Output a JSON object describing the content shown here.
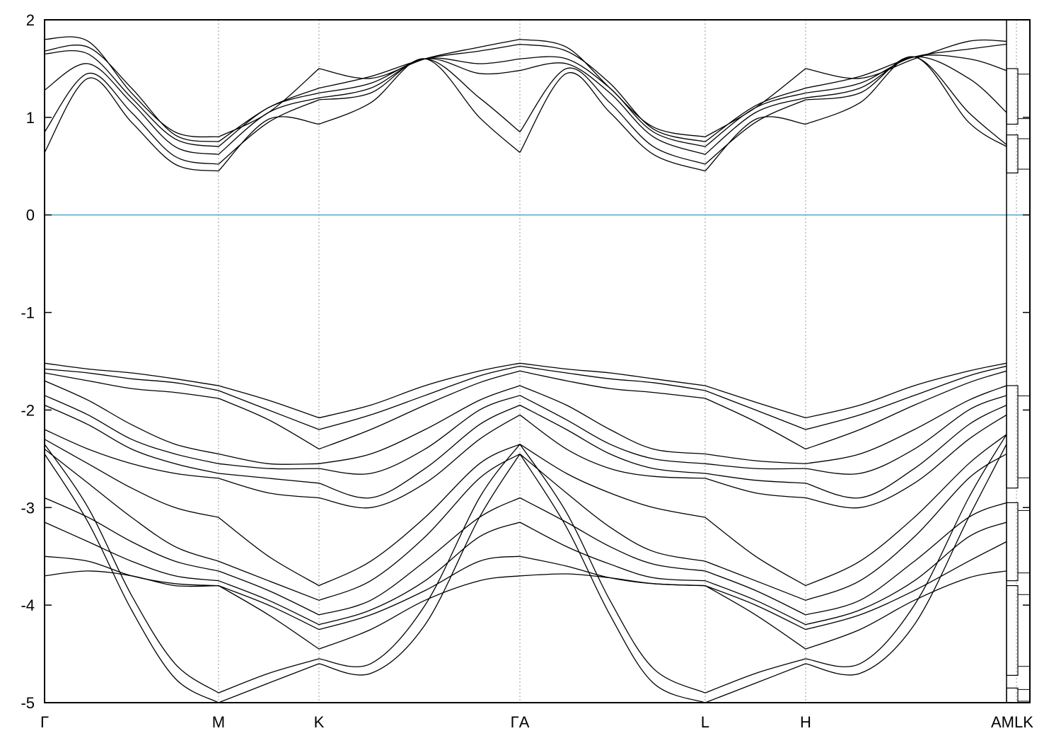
{
  "chart_data": {
    "type": "line",
    "title": "",
    "xlabel": "",
    "ylabel": "",
    "ylim": [
      -5,
      2
    ],
    "yticks": [
      -5,
      -4,
      -3,
      -2,
      -1,
      0,
      1,
      2
    ],
    "grid": "vertical dotted lines at high-symmetry points",
    "kpoints": [
      {
        "label": "Γ",
        "x": 0.0
      },
      {
        "label": "M",
        "x": 0.8
      },
      {
        "label": "K",
        "x": 1.262
      },
      {
        "label": "ΓA",
        "x": 2.186
      },
      {
        "label": "L",
        "x": 3.038
      },
      {
        "label": "H",
        "x": 3.5
      },
      {
        "label": "AMLK",
        "x": 4.424
      }
    ],
    "path_x_max": 4.424,
    "fermi_level": 0,
    "fermi_color": "#56a8c8",
    "line_color": "#000000",
    "dos_panel": {
      "energy_blocks": [
        [
          0.43,
          0.82
        ],
        [
          0.93,
          1.5
        ],
        [
          -1.75,
          -2.8
        ],
        [
          -2.95,
          -3.75
        ],
        [
          -3.8,
          -4.72
        ],
        [
          -4.85,
          -5.0
        ]
      ]
    },
    "segments": [
      {
        "from": "Γ",
        "to": "M",
        "x": [
          0.0,
          0.2,
          0.4,
          0.6,
          0.8
        ],
        "conduction": [
          [
            1.8,
            1.78,
            1.25,
            0.85,
            0.8
          ],
          [
            1.68,
            1.72,
            1.3,
            0.82,
            0.75
          ],
          [
            1.65,
            1.65,
            1.2,
            0.78,
            0.7
          ],
          [
            1.28,
            1.55,
            1.15,
            0.7,
            0.62
          ],
          [
            0.85,
            1.45,
            1.05,
            0.6,
            0.52
          ],
          [
            0.64,
            1.4,
            0.95,
            0.52,
            0.45
          ]
        ],
        "valence": [
          [
            -1.52,
            -1.58,
            -1.62,
            -1.68,
            -1.75
          ],
          [
            -1.58,
            -1.62,
            -1.68,
            -1.72,
            -1.8
          ],
          [
            -1.62,
            -1.7,
            -1.78,
            -1.82,
            -1.88
          ],
          [
            -1.7,
            -1.9,
            -2.15,
            -2.35,
            -2.45
          ],
          [
            -1.85,
            -2.05,
            -2.3,
            -2.45,
            -2.55
          ],
          [
            -1.95,
            -2.15,
            -2.4,
            -2.55,
            -2.65
          ],
          [
            -2.2,
            -2.4,
            -2.55,
            -2.65,
            -2.7
          ],
          [
            -2.3,
            -2.55,
            -2.8,
            -3.0,
            -3.1
          ],
          [
            -2.4,
            -2.75,
            -3.1,
            -3.4,
            -3.55
          ],
          [
            -2.9,
            -3.1,
            -3.35,
            -3.55,
            -3.65
          ],
          [
            -3.15,
            -3.35,
            -3.55,
            -3.7,
            -3.75
          ],
          [
            -3.5,
            -3.55,
            -3.7,
            -3.78,
            -3.8
          ],
          [
            -3.7,
            -3.65,
            -3.7,
            -3.8,
            -3.8
          ],
          [
            -2.35,
            -3.0,
            -3.9,
            -4.6,
            -4.9
          ],
          [
            -2.45,
            -3.15,
            -4.05,
            -4.75,
            -5.0
          ]
        ]
      },
      {
        "from": "M",
        "to": "K",
        "x": [
          0.8,
          1.03,
          1.262
        ],
        "conduction": [
          [
            0.8,
            1.05,
            1.5
          ],
          [
            0.75,
            1.1,
            1.3
          ],
          [
            0.7,
            1.1,
            1.25
          ],
          [
            0.62,
            1.05,
            1.2
          ],
          [
            0.52,
            0.95,
            1.18
          ],
          [
            0.45,
            0.98,
            0.93
          ]
        ],
        "valence": [
          [
            -1.75,
            -1.9,
            -2.08
          ],
          [
            -1.8,
            -2.0,
            -2.2
          ],
          [
            -1.88,
            -2.1,
            -2.4
          ],
          [
            -2.45,
            -2.55,
            -2.55
          ],
          [
            -2.55,
            -2.6,
            -2.6
          ],
          [
            -2.65,
            -2.7,
            -2.75
          ],
          [
            -2.7,
            -2.85,
            -2.9
          ],
          [
            -3.1,
            -3.5,
            -3.8
          ],
          [
            -3.55,
            -3.75,
            -3.95
          ],
          [
            -3.65,
            -3.85,
            -4.1
          ],
          [
            -3.75,
            -3.95,
            -4.2
          ],
          [
            -3.8,
            -4.0,
            -4.25
          ],
          [
            -3.8,
            -4.1,
            -4.45
          ],
          [
            -4.9,
            -4.7,
            -4.55
          ],
          [
            -5.0,
            -4.8,
            -4.6
          ]
        ]
      },
      {
        "from": "K",
        "to": "ΓA",
        "x": [
          1.262,
          1.5,
          1.75,
          2.0,
          2.186
        ],
        "conduction": [
          [
            1.5,
            1.4,
            1.6,
            1.72,
            1.8
          ],
          [
            1.3,
            1.42,
            1.6,
            1.68,
            1.75
          ],
          [
            1.25,
            1.35,
            1.6,
            1.55,
            1.6
          ],
          [
            1.2,
            1.3,
            1.6,
            1.45,
            1.48
          ],
          [
            1.18,
            1.25,
            1.6,
            1.2,
            0.85
          ],
          [
            0.93,
            1.15,
            1.6,
            1.0,
            0.64
          ]
        ],
        "valence": [
          [
            -2.08,
            -1.95,
            -1.75,
            -1.6,
            -1.52
          ],
          [
            -2.2,
            -2.05,
            -1.85,
            -1.65,
            -1.55
          ],
          [
            -2.4,
            -2.2,
            -1.95,
            -1.72,
            -1.6
          ],
          [
            -2.55,
            -2.45,
            -2.2,
            -1.9,
            -1.75
          ],
          [
            -2.6,
            -2.65,
            -2.4,
            -2.0,
            -1.85
          ],
          [
            -2.75,
            -2.9,
            -2.6,
            -2.15,
            -1.95
          ],
          [
            -2.9,
            -3.0,
            -2.75,
            -2.3,
            -2.05
          ],
          [
            -3.8,
            -3.55,
            -3.1,
            -2.55,
            -2.35
          ],
          [
            -3.95,
            -3.75,
            -3.3,
            -2.7,
            -2.45
          ],
          [
            -4.1,
            -3.95,
            -3.55,
            -3.1,
            -2.9
          ],
          [
            -4.2,
            -4.05,
            -3.75,
            -3.3,
            -3.15
          ],
          [
            -4.25,
            -4.1,
            -3.85,
            -3.55,
            -3.5
          ],
          [
            -4.45,
            -4.25,
            -3.95,
            -3.75,
            -3.7
          ],
          [
            -4.55,
            -4.6,
            -4.0,
            -2.9,
            -2.35
          ],
          [
            -4.6,
            -4.7,
            -4.2,
            -3.1,
            -2.45
          ]
        ]
      },
      {
        "from": "ΓA",
        "to": "L",
        "x": [
          2.186,
          2.4,
          2.6,
          2.8,
          3.038
        ],
        "conduction": [
          [
            1.8,
            1.72,
            1.3,
            0.9,
            0.8
          ],
          [
            1.75,
            1.68,
            1.35,
            0.88,
            0.75
          ],
          [
            1.6,
            1.6,
            1.3,
            0.85,
            0.7
          ],
          [
            1.48,
            1.55,
            1.25,
            0.8,
            0.62
          ],
          [
            0.85,
            1.5,
            1.15,
            0.7,
            0.52
          ],
          [
            0.64,
            1.45,
            1.05,
            0.62,
            0.45
          ]
        ],
        "valence": [
          [
            -1.52,
            -1.58,
            -1.62,
            -1.68,
            -1.75
          ],
          [
            -1.55,
            -1.62,
            -1.68,
            -1.72,
            -1.8
          ],
          [
            -1.6,
            -1.7,
            -1.78,
            -1.82,
            -1.88
          ],
          [
            -1.75,
            -1.95,
            -2.2,
            -2.4,
            -2.45
          ],
          [
            -1.85,
            -2.1,
            -2.35,
            -2.5,
            -2.55
          ],
          [
            -1.95,
            -2.2,
            -2.45,
            -2.6,
            -2.65
          ],
          [
            -2.05,
            -2.4,
            -2.6,
            -2.68,
            -2.7
          ],
          [
            -2.35,
            -2.65,
            -2.85,
            -3.0,
            -3.1
          ],
          [
            -2.45,
            -2.85,
            -3.2,
            -3.45,
            -3.55
          ],
          [
            -2.9,
            -3.15,
            -3.4,
            -3.58,
            -3.65
          ],
          [
            -3.15,
            -3.4,
            -3.58,
            -3.72,
            -3.75
          ],
          [
            -3.5,
            -3.6,
            -3.72,
            -3.78,
            -3.8
          ],
          [
            -3.7,
            -3.68,
            -3.72,
            -3.78,
            -3.8
          ],
          [
            -2.35,
            -3.05,
            -3.95,
            -4.65,
            -4.9
          ],
          [
            -2.45,
            -3.2,
            -4.1,
            -4.8,
            -5.0
          ]
        ]
      },
      {
        "from": "L",
        "to": "H",
        "x": [
          3.038,
          3.27,
          3.5
        ],
        "conduction": [
          [
            0.8,
            1.1,
            1.5
          ],
          [
            0.75,
            1.12,
            1.3
          ],
          [
            0.7,
            1.1,
            1.25
          ],
          [
            0.62,
            1.05,
            1.2
          ],
          [
            0.52,
            0.95,
            1.18
          ],
          [
            0.45,
            0.98,
            0.93
          ]
        ],
        "valence": [
          [
            -1.75,
            -1.92,
            -2.08
          ],
          [
            -1.8,
            -2.0,
            -2.2
          ],
          [
            -1.88,
            -2.12,
            -2.4
          ],
          [
            -2.45,
            -2.52,
            -2.55
          ],
          [
            -2.55,
            -2.6,
            -2.6
          ],
          [
            -2.65,
            -2.72,
            -2.75
          ],
          [
            -2.7,
            -2.85,
            -2.9
          ],
          [
            -3.1,
            -3.5,
            -3.8
          ],
          [
            -3.55,
            -3.75,
            -3.95
          ],
          [
            -3.65,
            -3.85,
            -4.1
          ],
          [
            -3.75,
            -3.95,
            -4.2
          ],
          [
            -3.8,
            -4.0,
            -4.25
          ],
          [
            -3.8,
            -4.1,
            -4.45
          ],
          [
            -4.9,
            -4.7,
            -4.55
          ],
          [
            -5.0,
            -4.8,
            -4.6
          ]
        ]
      },
      {
        "from": "H",
        "to": "AMLK",
        "x": [
          3.5,
          3.75,
          4.0,
          4.25,
          4.424
        ],
        "conduction": [
          [
            1.5,
            1.4,
            1.6,
            1.78,
            1.78
          ],
          [
            1.3,
            1.42,
            1.62,
            1.7,
            1.75
          ],
          [
            1.25,
            1.35,
            1.62,
            1.6,
            1.48
          ],
          [
            1.2,
            1.3,
            1.62,
            1.4,
            1.05
          ],
          [
            1.18,
            1.25,
            1.62,
            1.05,
            0.72
          ],
          [
            0.93,
            1.15,
            1.62,
            0.95,
            0.7
          ]
        ],
        "valence": [
          [
            -2.08,
            -1.95,
            -1.75,
            -1.6,
            -1.52
          ],
          [
            -2.2,
            -2.05,
            -1.85,
            -1.65,
            -1.55
          ],
          [
            -2.4,
            -2.2,
            -1.95,
            -1.72,
            -1.6
          ],
          [
            -2.55,
            -2.45,
            -2.2,
            -1.9,
            -1.75
          ],
          [
            -2.6,
            -2.65,
            -2.4,
            -2.0,
            -1.85
          ],
          [
            -2.75,
            -2.9,
            -2.6,
            -2.15,
            -1.95
          ],
          [
            -2.9,
            -3.0,
            -2.75,
            -2.3,
            -2.05
          ],
          [
            -3.8,
            -3.55,
            -3.1,
            -2.55,
            -2.25
          ],
          [
            -3.95,
            -3.75,
            -3.3,
            -2.7,
            -2.45
          ],
          [
            -4.1,
            -3.95,
            -3.55,
            -3.1,
            -2.95
          ],
          [
            -4.2,
            -4.05,
            -3.75,
            -3.3,
            -3.15
          ],
          [
            -4.25,
            -4.1,
            -3.85,
            -3.55,
            -3.35
          ],
          [
            -4.45,
            -4.25,
            -3.95,
            -3.72,
            -3.65
          ],
          [
            -4.55,
            -4.6,
            -4.0,
            -2.9,
            -2.25
          ],
          [
            -4.6,
            -4.7,
            -4.2,
            -3.1,
            -2.35
          ]
        ]
      }
    ]
  }
}
